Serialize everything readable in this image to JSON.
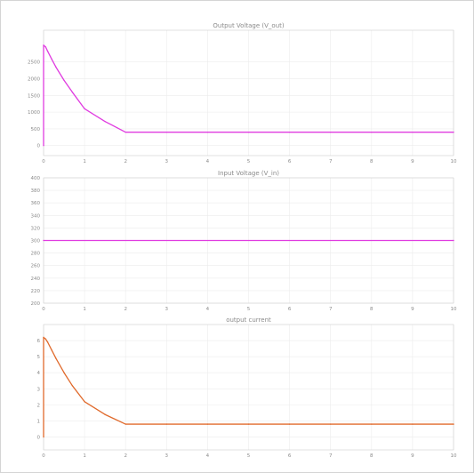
{
  "chart_data": [
    {
      "type": "line",
      "title": "Output Voltage (V_out)",
      "xlim": [
        0,
        10
      ],
      "ylim": [
        -300,
        3450
      ],
      "xticks": [
        0,
        1,
        2,
        3,
        4,
        5,
        6,
        7,
        8,
        9,
        10
      ],
      "yticks": [
        0,
        500,
        1000,
        1500,
        2000,
        2500
      ],
      "ytick_labels": [
        "0",
        "500",
        "1000",
        "1500",
        "2000",
        "2500"
      ],
      "grid": true,
      "series": [
        {
          "color": "#e03ce0",
          "x": [
            0,
            0,
            0.05,
            0.1,
            0.2,
            0.3,
            0.5,
            0.7,
            1.0,
            1.5,
            2.0,
            3,
            4,
            5,
            6,
            7,
            8,
            9,
            10
          ],
          "y": [
            0,
            3000,
            2950,
            2820,
            2580,
            2350,
            1950,
            1600,
            1100,
            720,
            400,
            400,
            400,
            400,
            400,
            400,
            400,
            400,
            400
          ]
        }
      ]
    },
    {
      "type": "line",
      "title": "Input Voltage (V_in)",
      "xlim": [
        0,
        10
      ],
      "ylim": [
        200,
        400
      ],
      "xticks": [
        0,
        1,
        2,
        3,
        4,
        5,
        6,
        7,
        8,
        9,
        10
      ],
      "yticks": [
        200,
        220,
        240,
        260,
        280,
        300,
        320,
        340,
        360,
        380,
        400
      ],
      "ytick_labels": [
        "200",
        "220",
        "240",
        "260",
        "280",
        "300",
        "320",
        "340",
        "360",
        "380",
        "400"
      ],
      "grid": true,
      "series": [
        {
          "color": "#e03ce0",
          "x": [
            0,
            10
          ],
          "y": [
            300,
            300
          ]
        }
      ]
    },
    {
      "type": "line",
      "title": "output current",
      "xlim": [
        0,
        10
      ],
      "ylim": [
        -0.8,
        7
      ],
      "xticks": [
        0,
        1,
        2,
        3,
        4,
        5,
        6,
        7,
        8,
        9,
        10
      ],
      "yticks": [
        0,
        1,
        2,
        3,
        4,
        5,
        6
      ],
      "ytick_labels": [
        "0",
        "1",
        "2",
        "3",
        "4",
        "5",
        "6"
      ],
      "grid": true,
      "series": [
        {
          "color": "#e06a2c",
          "x": [
            0,
            0,
            0.05,
            0.1,
            0.2,
            0.3,
            0.5,
            0.7,
            1.0,
            1.5,
            2.0,
            3,
            4,
            5,
            6,
            7,
            8,
            9,
            10
          ],
          "y": [
            0,
            6.2,
            6.1,
            5.9,
            5.4,
            4.9,
            4.0,
            3.2,
            2.2,
            1.4,
            0.8,
            0.8,
            0.8,
            0.8,
            0.8,
            0.8,
            0.8,
            0.8,
            0.8
          ]
        }
      ]
    }
  ]
}
